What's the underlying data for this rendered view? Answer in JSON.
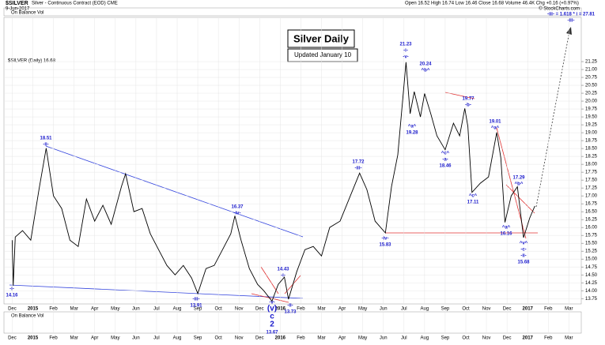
{
  "header": {
    "symbol": "$SILVER",
    "description": "Silver - Continuous Contract (EOD) CME",
    "date": "9-Jun-2017",
    "quote": "Open 16.52  High 16.74  Low 16.46  Close 16.68  Volume 46.4K  Chg +0.16 (+0.97%)",
    "source": "© StockCharts.com"
  },
  "chart_data": {
    "type": "line",
    "title": "Silver Daily",
    "subtitle": "Updated January 10",
    "indicator": "On Balance Vol",
    "x": [
      0.0,
      0.05,
      0.15,
      0.5,
      0.9,
      1.3,
      1.65,
      2.0,
      2.4,
      2.8,
      3.2,
      3.6,
      4.0,
      4.4,
      4.8,
      5.3,
      5.5,
      5.9,
      6.3,
      6.7,
      7.1,
      7.5,
      7.9,
      8.3,
      8.7,
      9.0,
      9.4,
      9.8,
      10.2,
      10.6,
      10.8,
      11.1,
      11.5,
      11.9,
      12.2,
      12.6,
      12.9,
      13.2,
      13.4,
      13.8,
      14.2,
      14.6,
      15.0,
      15.4,
      15.9,
      16.4,
      16.85,
      17.2,
      17.6,
      18.1,
      18.4,
      18.7,
      19.1,
      19.3,
      19.5,
      19.8,
      20.0,
      20.3,
      20.6,
      21.0,
      21.4,
      21.7,
      21.95,
      22.1,
      22.3,
      22.7,
      23.1,
      23.5,
      23.7,
      23.9,
      24.2,
      24.5,
      24.8,
      25.1,
      25.35
    ],
    "series": [
      {
        "name": "$SILVER (Daily) 16.68",
        "color": "#000000",
        "values": [
          15.6,
          14.16,
          15.7,
          15.9,
          15.6,
          17.2,
          18.51,
          17.0,
          16.6,
          15.6,
          15.4,
          16.9,
          16.2,
          16.7,
          16.1,
          17.3,
          17.7,
          16.5,
          16.6,
          15.8,
          15.3,
          14.8,
          14.5,
          14.8,
          14.4,
          13.91,
          14.7,
          14.8,
          15.3,
          15.8,
          16.37,
          15.6,
          14.7,
          14.2,
          14.0,
          13.67,
          14.2,
          14.43,
          13.73,
          14.6,
          15.3,
          15.4,
          15.1,
          16.0,
          16.2,
          17.0,
          17.72,
          17.2,
          16.2,
          15.83,
          17.3,
          18.3,
          21.23,
          19.6,
          20.3,
          19.5,
          20.24,
          19.6,
          18.9,
          18.46,
          19.3,
          18.9,
          19.77,
          19.2,
          17.11,
          17.4,
          17.6,
          19.01,
          18.2,
          16.16,
          17.0,
          17.29,
          15.68,
          16.3,
          16.68
        ]
      }
    ],
    "xlim": [
      -0.4,
      27.6
    ],
    "ylim": [
      13.58,
      22.65
    ],
    "xticks": [
      {
        "value": 0,
        "label": "Dec"
      },
      {
        "value": 1,
        "label": "2015"
      },
      {
        "value": 2,
        "label": "Feb"
      },
      {
        "value": 3,
        "label": "Mar"
      },
      {
        "value": 4,
        "label": "Apr"
      },
      {
        "value": 5,
        "label": "May"
      },
      {
        "value": 6,
        "label": "Jun"
      },
      {
        "value": 7,
        "label": "Jul"
      },
      {
        "value": 8,
        "label": "Aug"
      },
      {
        "value": 9,
        "label": "Sep"
      },
      {
        "value": 10,
        "label": "Oct"
      },
      {
        "value": 11,
        "label": "Nov"
      },
      {
        "value": 12,
        "label": "Dec"
      },
      {
        "value": 13,
        "label": "2016"
      },
      {
        "value": 14,
        "label": "Feb"
      },
      {
        "value": 15,
        "label": "Mar"
      },
      {
        "value": 16,
        "label": "Apr"
      },
      {
        "value": 17,
        "label": "May"
      },
      {
        "value": 18,
        "label": "Jun"
      },
      {
        "value": 19,
        "label": "Jul"
      },
      {
        "value": 20,
        "label": "Aug"
      },
      {
        "value": 21,
        "label": "Sep"
      },
      {
        "value": 22,
        "label": "Oct"
      },
      {
        "value": 23,
        "label": "Nov"
      },
      {
        "value": 24,
        "label": "Dec"
      },
      {
        "value": 25,
        "label": "2017"
      },
      {
        "value": 26,
        "label": "Feb"
      },
      {
        "value": 27,
        "label": "Mar"
      }
    ],
    "yticks": [
      13.75,
      {
        "value": 14,
        "label": "14.00"
      },
      14.25,
      {
        "value": 14.5,
        "label": "14.50"
      },
      14.75,
      {
        "value": 15,
        "label": "15.00"
      },
      15.25,
      {
        "value": 15.5,
        "label": "15.50"
      },
      15.75,
      {
        "value": 16,
        "label": "16.00"
      },
      16.25,
      {
        "value": 16.5,
        "label": "16.50"
      },
      16.75,
      {
        "value": 17,
        "label": "17.00"
      },
      17.25,
      {
        "value": 17.5,
        "label": "17.50"
      },
      17.75,
      {
        "value": 18,
        "label": "18.00"
      },
      18.25,
      {
        "value": 18.5,
        "label": "18.50"
      },
      18.75,
      {
        "value": 19,
        "label": "19.00"
      },
      19.25,
      {
        "value": 19.5,
        "label": "19.50"
      },
      19.75,
      {
        "value": 20,
        "label": "20.00"
      },
      20.25,
      {
        "value": 20.5,
        "label": "20.50"
      },
      20.75,
      {
        "value": 21,
        "label": "21.00"
      },
      21.25
    ],
    "grid": true,
    "annotations": [
      [
        "-i-",
        "14.16"
      ],
      [
        "18.51",
        "-ii-"
      ],
      [
        "-iii-",
        "13.91"
      ],
      [
        "16.37",
        "-iv-"
      ],
      [
        "-v-",
        "(v)",
        "c",
        "2",
        "13.67"
      ],
      [
        "14.43",
        "-i-"
      ],
      [
        "-ii-",
        "13.73"
      ],
      [
        "17.72",
        "-iii-"
      ],
      [
        "-iv-",
        "15.83"
      ],
      [
        "21.23",
        "-i-",
        "-v-"
      ],
      [
        "20.24",
        "^b^"
      ],
      [
        "^a^",
        "19.28"
      ],
      [
        "^c^",
        "-a-",
        "18.46"
      ],
      [
        "19.77",
        "-b-"
      ],
      [
        "^c^",
        "17.11"
      ],
      [
        "19.01",
        "^a^"
      ],
      [
        "17.29",
        "^b^"
      ],
      [
        "^a^",
        "16.16"
      ],
      [
        "^v^",
        "-c-",
        "-ii-",
        "15.68"
      ],
      [
        "-iii- = 1.618 * i = 27.81",
        "-iii-"
      ]
    ]
  }
}
